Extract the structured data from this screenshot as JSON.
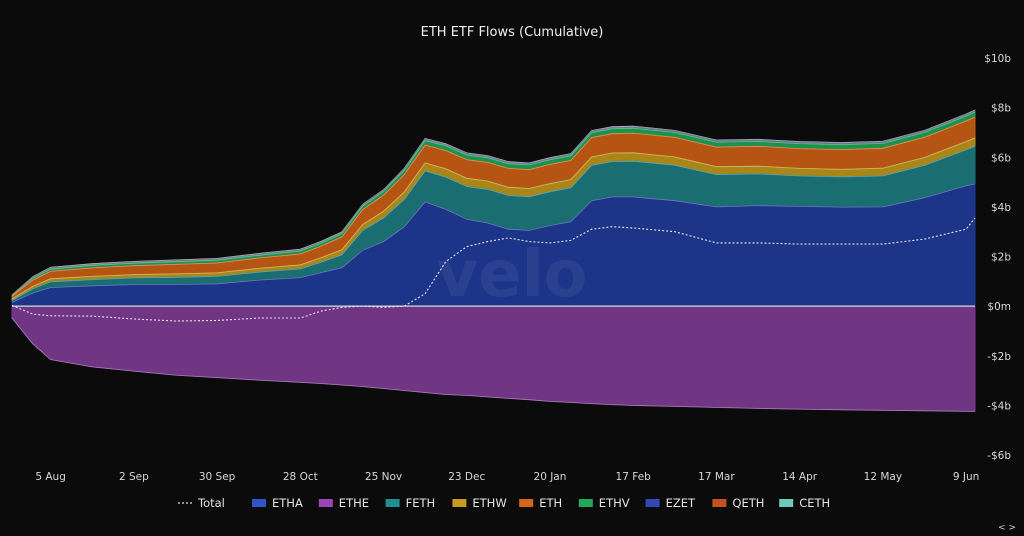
{
  "chart_data": {
    "type": "area",
    "title": "ETH ETF Flows (Cumulative)",
    "xlabel": "",
    "ylabel": "",
    "y_unit": "b",
    "ylim": [
      -6,
      10
    ],
    "y_ticks": [
      -6,
      -4,
      -2,
      0,
      2,
      4,
      6,
      8,
      10
    ],
    "y_tick_labels": [
      "-$6b",
      "-$4b",
      "-$2b",
      "$0m",
      "$2b",
      "$4b",
      "$6b",
      "$8b",
      "$10b"
    ],
    "x_ticks": [
      "2024-08-05",
      "2024-09-02",
      "2024-09-30",
      "2024-10-28",
      "2024-11-25",
      "2024-12-23",
      "2025-01-20",
      "2025-02-17",
      "2025-03-17",
      "2025-04-14",
      "2025-05-12",
      "2025-06-09"
    ],
    "x_tick_labels": [
      "5 Aug",
      "2 Sep",
      "30 Sep",
      "28 Oct",
      "25 Nov",
      "23 Dec",
      "20 Jan",
      "17 Feb",
      "17 Mar",
      "14 Apr",
      "12 May",
      "9 Jun"
    ],
    "x_range": [
      "2024-07-23",
      "2025-06-12"
    ],
    "grid": false,
    "legend_position": "bottom",
    "watermark": "velo",
    "dates": [
      "2024-07-23",
      "2024-07-30",
      "2024-08-05",
      "2024-08-19",
      "2024-09-02",
      "2024-09-16",
      "2024-09-30",
      "2024-10-14",
      "2024-10-28",
      "2024-11-04",
      "2024-11-11",
      "2024-11-18",
      "2024-11-25",
      "2024-12-02",
      "2024-12-09",
      "2024-12-16",
      "2024-12-23",
      "2024-12-30",
      "2025-01-06",
      "2025-01-13",
      "2025-01-20",
      "2025-01-27",
      "2025-02-03",
      "2025-02-10",
      "2025-02-17",
      "2025-03-03",
      "2025-03-17",
      "2025-03-31",
      "2025-04-14",
      "2025-04-28",
      "2025-05-12",
      "2025-05-26",
      "2025-06-09",
      "2025-06-12"
    ],
    "series": [
      {
        "name": "ETHA",
        "color": "#1e3a94",
        "values": [
          0.15,
          0.53,
          0.75,
          0.82,
          0.87,
          0.87,
          0.9,
          1.05,
          1.15,
          1.35,
          1.55,
          2.25,
          2.6,
          3.2,
          4.2,
          3.9,
          3.5,
          3.35,
          3.1,
          3.05,
          3.25,
          3.4,
          4.25,
          4.4,
          4.4,
          4.25,
          4.0,
          4.05,
          4.02,
          3.99,
          4.0,
          4.37,
          4.85,
          4.92
        ]
      },
      {
        "name": "ETHE",
        "color": "#7a3a8e",
        "values": [
          -0.48,
          -1.52,
          -2.15,
          -2.45,
          -2.62,
          -2.78,
          -2.88,
          -2.98,
          -3.07,
          -3.12,
          -3.18,
          -3.24,
          -3.32,
          -3.4,
          -3.48,
          -3.56,
          -3.6,
          -3.66,
          -3.72,
          -3.77,
          -3.84,
          -3.88,
          -3.93,
          -3.97,
          -4.0,
          -4.04,
          -4.08,
          -4.12,
          -4.15,
          -4.18,
          -4.2,
          -4.22,
          -4.24,
          -4.24
        ]
      },
      {
        "name": "FETH",
        "color": "#1c767a",
        "values": [
          0.08,
          0.17,
          0.23,
          0.25,
          0.27,
          0.29,
          0.3,
          0.32,
          0.35,
          0.42,
          0.52,
          0.8,
          0.95,
          1.1,
          1.25,
          1.3,
          1.32,
          1.36,
          1.36,
          1.36,
          1.36,
          1.37,
          1.42,
          1.43,
          1.44,
          1.43,
          1.3,
          1.28,
          1.23,
          1.22,
          1.25,
          1.3,
          1.45,
          1.52
        ]
      },
      {
        "name": "ETHW",
        "color": "#b8901a",
        "values": [
          0.06,
          0.1,
          0.12,
          0.13,
          0.13,
          0.14,
          0.14,
          0.15,
          0.16,
          0.18,
          0.2,
          0.24,
          0.27,
          0.3,
          0.32,
          0.33,
          0.33,
          0.33,
          0.33,
          0.33,
          0.33,
          0.33,
          0.34,
          0.34,
          0.34,
          0.33,
          0.32,
          0.31,
          0.3,
          0.3,
          0.31,
          0.32,
          0.33,
          0.34
        ]
      },
      {
        "name": "ETH",
        "color": "#c55b16",
        "values": [
          0.1,
          0.25,
          0.3,
          0.34,
          0.36,
          0.38,
          0.4,
          0.42,
          0.44,
          0.47,
          0.52,
          0.6,
          0.65,
          0.7,
          0.72,
          0.74,
          0.75,
          0.75,
          0.76,
          0.76,
          0.77,
          0.77,
          0.78,
          0.78,
          0.79,
          0.79,
          0.79,
          0.8,
          0.8,
          0.8,
          0.8,
          0.81,
          0.83,
          0.84
        ]
      },
      {
        "name": "ETHV",
        "color": "#1e9f50",
        "values": [
          0.03,
          0.07,
          0.09,
          0.1,
          0.1,
          0.11,
          0.11,
          0.11,
          0.12,
          0.12,
          0.13,
          0.14,
          0.15,
          0.17,
          0.18,
          0.19,
          0.19,
          0.19,
          0.19,
          0.19,
          0.19,
          0.19,
          0.2,
          0.2,
          0.2,
          0.2,
          0.2,
          0.2,
          0.2,
          0.2,
          0.2,
          0.2,
          0.2,
          0.2
        ]
      },
      {
        "name": "EZET",
        "color": "#2438a8",
        "values": [
          0.01,
          0.02,
          0.03,
          0.03,
          0.03,
          0.03,
          0.03,
          0.03,
          0.03,
          0.03,
          0.03,
          0.03,
          0.03,
          0.04,
          0.04,
          0.04,
          0.04,
          0.04,
          0.04,
          0.04,
          0.04,
          0.04,
          0.04,
          0.04,
          0.04,
          0.04,
          0.04,
          0.04,
          0.04,
          0.04,
          0.04,
          0.04,
          0.04,
          0.04
        ]
      },
      {
        "name": "QETH",
        "color": "#b84818",
        "values": [
          0.01,
          0.02,
          0.02,
          0.02,
          0.02,
          0.02,
          0.02,
          0.02,
          0.02,
          0.02,
          0.02,
          0.02,
          0.02,
          0.02,
          0.02,
          0.02,
          0.02,
          0.02,
          0.02,
          0.02,
          0.02,
          0.02,
          0.02,
          0.02,
          0.02,
          0.02,
          0.02,
          0.02,
          0.02,
          0.02,
          0.02,
          0.02,
          0.02,
          0.02
        ]
      },
      {
        "name": "CETH",
        "color": "#5ec2b3",
        "values": [
          0.01,
          0.02,
          0.02,
          0.02,
          0.02,
          0.02,
          0.02,
          0.02,
          0.02,
          0.02,
          0.02,
          0.02,
          0.02,
          0.02,
          0.02,
          0.02,
          0.02,
          0.02,
          0.02,
          0.02,
          0.02,
          0.02,
          0.02,
          0.02,
          0.02,
          0.02,
          0.02,
          0.02,
          0.02,
          0.02,
          0.02,
          0.02,
          0.02,
          0.02
        ]
      }
    ],
    "total": {
      "name": "Total",
      "color": "#e8e8e8",
      "style": "dotted",
      "values": [
        0.03,
        -0.32,
        -0.39,
        -0.4,
        -0.52,
        -0.6,
        -0.58,
        -0.48,
        -0.48,
        -0.2,
        -0.05,
        0.0,
        -0.05,
        0.0,
        0.5,
        1.8,
        2.4,
        2.6,
        2.75,
        2.6,
        2.55,
        2.65,
        3.1,
        3.2,
        3.15,
        3.0,
        2.55,
        2.55,
        2.5,
        2.5,
        2.5,
        2.7,
        3.1,
        3.55
      ]
    }
  },
  "legend": [
    {
      "label": "Total",
      "kind": "dotted",
      "color": "#d8d8d8"
    },
    {
      "label": "ETHA",
      "kind": "area",
      "color": "#2f55c8"
    },
    {
      "label": "ETHE",
      "kind": "area",
      "color": "#9b45b5"
    },
    {
      "label": "FETH",
      "kind": "area",
      "color": "#1f8f94"
    },
    {
      "label": "ETHW",
      "kind": "area",
      "color": "#c69a1e"
    },
    {
      "label": "ETH",
      "kind": "area",
      "color": "#d2661c"
    },
    {
      "label": "ETHV",
      "kind": "area",
      "color": "#22a85a"
    },
    {
      "label": "EZET",
      "kind": "area",
      "color": "#3348b5"
    },
    {
      "label": "QETH",
      "kind": "area",
      "color": "#c45220"
    },
    {
      "label": "CETH",
      "kind": "area",
      "color": "#6cc9bc"
    }
  ],
  "nav_controls": "< >"
}
